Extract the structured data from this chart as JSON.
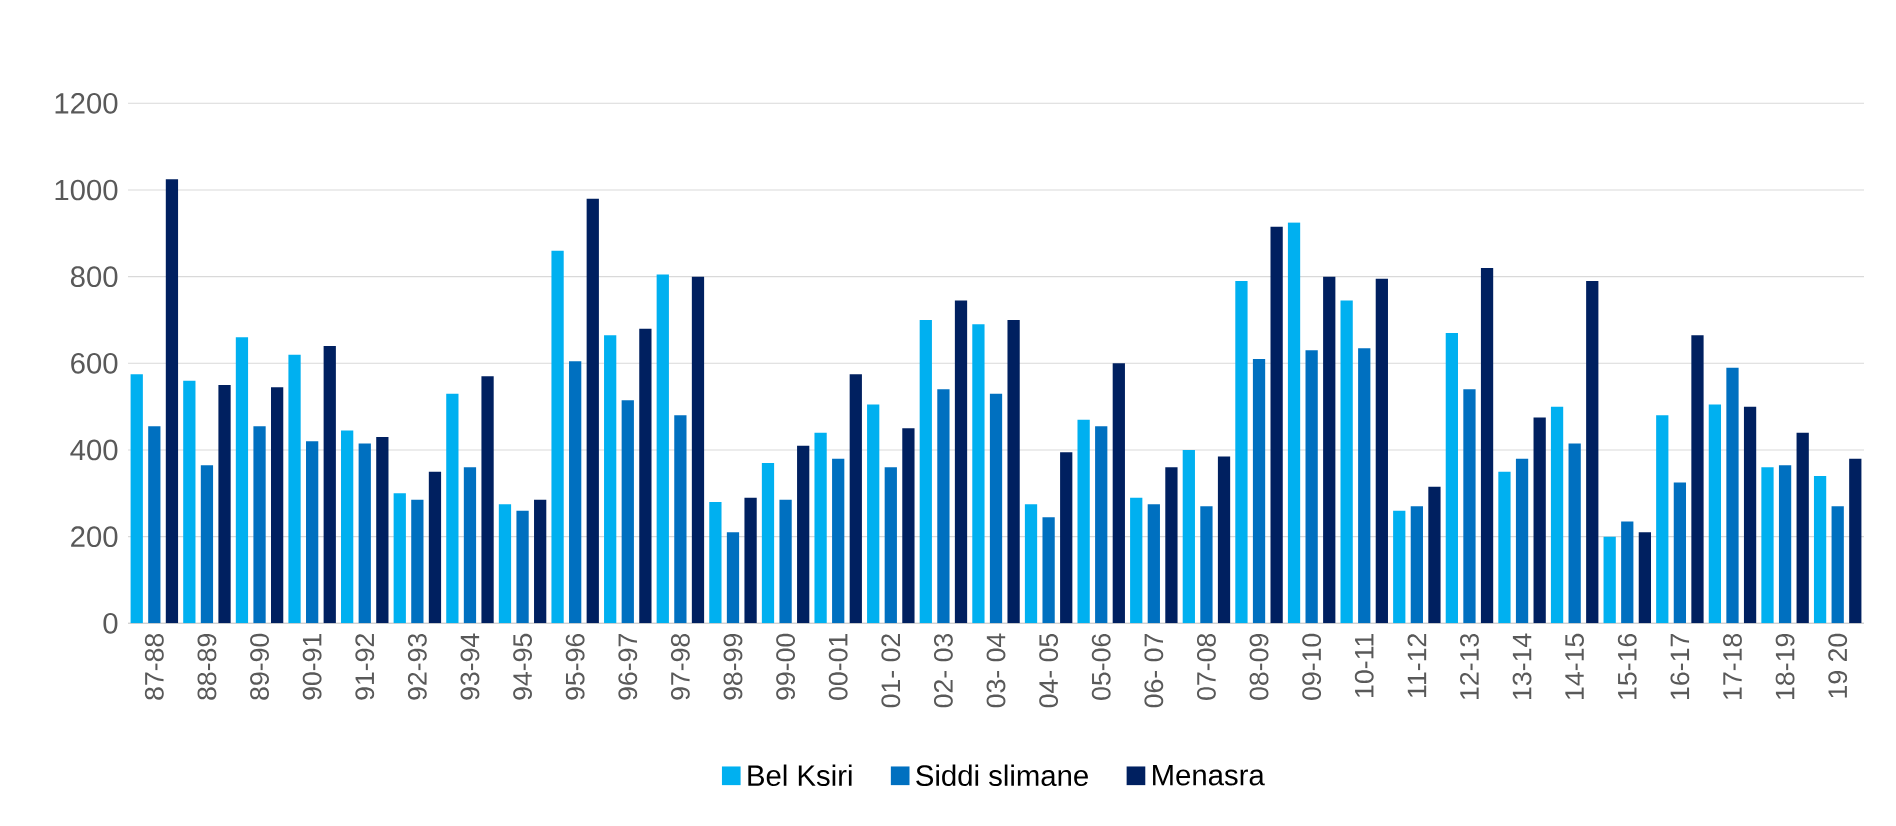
{
  "chart_data": {
    "type": "bar",
    "categories": [
      "87-88",
      "88-89",
      "89-90",
      "90-91",
      "91-92",
      "92-93",
      "93-94",
      "94-95",
      "95-96",
      "96-97",
      "97-98",
      "98-99",
      "99-00",
      "00-01",
      "01- 02",
      "02- 03",
      "03- 04",
      "04- 05",
      "05-06",
      "06- 07",
      "07-08",
      "08-09",
      "09-10",
      "10-11",
      "11-12",
      "12-13",
      "13-14",
      "14-15",
      "15-16",
      "16-17",
      "17-18",
      "18-19",
      "19 20"
    ],
    "series": [
      {
        "name": "Bel Ksiri",
        "color": "#00b0f0",
        "values": [
          575,
          560,
          660,
          620,
          445,
          300,
          530,
          275,
          860,
          665,
          805,
          280,
          370,
          440,
          505,
          700,
          690,
          275,
          470,
          290,
          400,
          790,
          925,
          745,
          260,
          670,
          350,
          500,
          200,
          480,
          505,
          360,
          340
        ]
      },
      {
        "name": "Siddi slimane",
        "color": "#0070c0",
        "values": [
          455,
          365,
          455,
          420,
          415,
          285,
          360,
          260,
          605,
          515,
          480,
          210,
          285,
          380,
          360,
          540,
          530,
          245,
          455,
          275,
          270,
          610,
          630,
          635,
          270,
          540,
          380,
          415,
          235,
          325,
          590,
          365,
          270
        ]
      },
      {
        "name": "Menasra",
        "color": "#002060",
        "values": [
          1025,
          550,
          545,
          640,
          430,
          350,
          570,
          285,
          980,
          680,
          800,
          290,
          410,
          575,
          450,
          745,
          700,
          395,
          600,
          360,
          385,
          915,
          800,
          795,
          315,
          820,
          475,
          790,
          210,
          665,
          500,
          440,
          380
        ]
      }
    ],
    "ylim": [
      0,
      1200
    ],
    "yticks": [
      0,
      200,
      400,
      600,
      800,
      1000,
      1200
    ],
    "grid": "y",
    "legend": "bottom"
  }
}
